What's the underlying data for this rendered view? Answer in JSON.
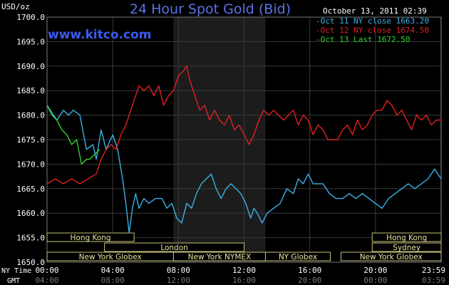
{
  "chart_data": {
    "type": "line",
    "title": "24 Hour Spot Gold (Bid)",
    "subtitle": "www.kitco.com",
    "timestamp": "October 13, 2011 02:39",
    "ylabel": "USD/oz",
    "ylim": [
      1650,
      1700
    ],
    "yticks": [
      1650,
      1655,
      1660,
      1665,
      1670,
      1675,
      1680,
      1685,
      1690,
      1695,
      1700
    ],
    "ytick_labels": [
      "1650.0",
      "1655.0",
      "1660.0",
      "1665.0",
      "1670.0",
      "1675.0",
      "1680.0",
      "1685.0",
      "1690.0",
      "1695.0",
      "1700.0"
    ],
    "xlim": [
      0,
      24
    ],
    "x_unit": "hour",
    "xticks": [
      0,
      4,
      8,
      12,
      16,
      20,
      23.983
    ],
    "xtick_labels_nytime": [
      "00:00",
      "04:00",
      "08:00",
      "12:00",
      "16:00",
      "20:00",
      "23:59"
    ],
    "xtick_labels_gmt": [
      "04:00",
      "08:00",
      "12:00",
      "16:00",
      "20:00",
      "00:00",
      "03:59"
    ],
    "row_label_nytime": "NY Time",
    "row_label_gmt": "GMT",
    "grid": true,
    "legend_position": "top-right",
    "highlight_band": [
      7.7,
      13.3
    ],
    "sessions": [
      {
        "label": "Hong Kong",
        "start": 0,
        "end": 5.3,
        "row": 0
      },
      {
        "label": "Hong Kong",
        "start": 19.8,
        "end": 24,
        "row": 0
      },
      {
        "label": "Sydney",
        "start": 19.8,
        "end": 24,
        "row": 1
      },
      {
        "label": "London",
        "start": 3.5,
        "end": 12.0,
        "row": 1
      },
      {
        "label": "New York Globex",
        "start": 0,
        "end": 7.7,
        "row": 2
      },
      {
        "label": "New York NYMEX",
        "start": 7.7,
        "end": 13.3,
        "row": 2
      },
      {
        "label": "NY Globex",
        "start": 13.3,
        "end": 17.25,
        "row": 2
      },
      {
        "label": "New York Globex",
        "start": 17.9,
        "end": 24,
        "row": 2
      }
    ],
    "series": [
      {
        "name": "Oct 11 NY close 1663.20",
        "color": "#3ab0e6",
        "x": [
          0,
          0.6,
          1.0,
          1.3,
          1.6,
          2.0,
          2.4,
          2.8,
          3.0,
          3.3,
          3.6,
          4.0,
          4.3,
          4.6,
          4.8,
          5.0,
          5.2,
          5.4,
          5.6,
          5.9,
          6.2,
          6.6,
          7.0,
          7.3,
          7.6,
          7.9,
          8.2,
          8.5,
          8.8,
          9.1,
          9.4,
          9.7,
          10.0,
          10.3,
          10.6,
          10.9,
          11.2,
          11.5,
          11.8,
          12.1,
          12.4,
          12.6,
          12.8,
          13.1,
          13.4,
          13.8,
          14.2,
          14.6,
          15.0,
          15.3,
          15.6,
          15.9,
          16.2,
          16.5,
          16.8,
          17.2,
          17.6,
          18.0,
          18.4,
          18.8,
          19.2,
          19.6,
          20.0,
          20.4,
          20.8,
          21.2,
          21.6,
          22.0,
          22.4,
          22.8,
          23.2,
          23.6,
          24.0
        ],
        "y": [
          1682,
          1679,
          1681,
          1680,
          1681,
          1680,
          1673,
          1674,
          1671,
          1677,
          1673,
          1676,
          1673,
          1667,
          1662,
          1656,
          1661,
          1664,
          1661,
          1663,
          1662,
          1663,
          1663,
          1661,
          1662,
          1659,
          1658,
          1662,
          1661,
          1664,
          1666,
          1667,
          1668,
          1665,
          1663,
          1665,
          1666,
          1665,
          1664,
          1662,
          1659,
          1661,
          1660,
          1658,
          1660,
          1661,
          1662,
          1665,
          1664,
          1667,
          1666,
          1668,
          1666,
          1666,
          1666,
          1664,
          1663,
          1663,
          1664,
          1663,
          1664,
          1663,
          1662,
          1661,
          1663,
          1664,
          1665,
          1666,
          1665,
          1666,
          1667,
          1669,
          1667
        ]
      },
      {
        "name": "Oct 12 NY close 1674.50",
        "color": "#e02020",
        "x": [
          0,
          0.5,
          1.0,
          1.5,
          2.0,
          2.5,
          3.0,
          3.3,
          3.6,
          3.9,
          4.2,
          4.5,
          4.8,
          5.0,
          5.3,
          5.6,
          5.9,
          6.2,
          6.5,
          6.8,
          7.1,
          7.4,
          7.7,
          8.0,
          8.3,
          8.5,
          8.7,
          9.0,
          9.3,
          9.6,
          9.9,
          10.2,
          10.5,
          10.8,
          11.1,
          11.4,
          11.7,
          12.0,
          12.3,
          12.6,
          12.9,
          13.2,
          13.5,
          13.8,
          14.1,
          14.4,
          14.7,
          15.0,
          15.3,
          15.6,
          15.9,
          16.2,
          16.5,
          16.8,
          17.1,
          17.4,
          17.7,
          18.0,
          18.3,
          18.6,
          18.9,
          19.2,
          19.5,
          19.8,
          20.1,
          20.4,
          20.7,
          21.0,
          21.3,
          21.6,
          21.9,
          22.2,
          22.5,
          22.8,
          23.1,
          23.4,
          23.7,
          24.0
        ],
        "y": [
          1666,
          1667,
          1666,
          1667,
          1666,
          1667,
          1668,
          1671,
          1673,
          1674,
          1673,
          1676,
          1678,
          1680,
          1683,
          1686,
          1685,
          1686,
          1684,
          1686,
          1682,
          1684,
          1685,
          1688,
          1689,
          1690,
          1687,
          1684,
          1681,
          1682,
          1679,
          1681,
          1679,
          1678,
          1680,
          1677,
          1678,
          1676,
          1674,
          1676,
          1679,
          1681,
          1680,
          1681,
          1680,
          1679,
          1680,
          1681,
          1678,
          1680,
          1679,
          1676,
          1678,
          1677,
          1675,
          1675,
          1675,
          1677,
          1678,
          1676,
          1679,
          1677,
          1678,
          1680,
          1681,
          1681,
          1683,
          1682,
          1680,
          1681,
          1679,
          1677,
          1680,
          1679,
          1680,
          1678,
          1679,
          1679
        ]
      },
      {
        "name": "Oct 13 Last 1672.50",
        "color": "#30d030",
        "x": [
          0,
          0.3,
          0.6,
          0.9,
          1.2,
          1.5,
          1.8,
          2.1,
          2.4,
          2.6,
          2.9,
          3.2
        ],
        "y": [
          1682,
          1680,
          1679,
          1677,
          1676,
          1674,
          1675,
          1670,
          1671,
          1671,
          1672,
          1673
        ]
      }
    ]
  }
}
